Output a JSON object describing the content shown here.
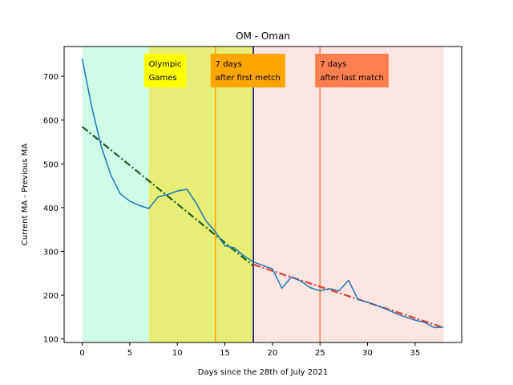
{
  "chart_data": {
    "type": "line",
    "title": "OM - Oman",
    "xlabel": "Days since the 28th of July 2021",
    "ylabel": "Current MA - Previous MA",
    "xlim": [
      -1.9,
      39.9
    ],
    "ylim": [
      92,
      768
    ],
    "xticks": [
      0,
      5,
      10,
      15,
      20,
      25,
      30,
      35
    ],
    "yticks": [
      100,
      200,
      300,
      400,
      500,
      600,
      700
    ],
    "grid": false,
    "regions": [
      {
        "x0": 0,
        "x1": 7,
        "color": "#d1fbe9"
      },
      {
        "x0": 7,
        "x1": 18,
        "color": "#e7ee77"
      },
      {
        "x0": 18,
        "x1": 38,
        "color": "#fde5e4"
      }
    ],
    "vlines": [
      {
        "x": 14,
        "color": "#ffa500"
      },
      {
        "x": 18,
        "color": "#00008b"
      },
      {
        "x": 25,
        "color": "#ff7f50"
      }
    ],
    "annotations": [
      {
        "x": 7,
        "y": 740,
        "lines": [
          "Olympic",
          "Games"
        ],
        "bg": "#ffff00"
      },
      {
        "x": 14,
        "y": 740,
        "lines": [
          "7 days",
          "after first metch"
        ],
        "bg": "#ffa500"
      },
      {
        "x": 25,
        "y": 740,
        "lines": [
          "7 days",
          "after last match"
        ],
        "bg": "#ff7f50"
      }
    ],
    "series": [
      {
        "color": "#1f77b4",
        "x": [
          0,
          1,
          2,
          3,
          4,
          5,
          6,
          7,
          8,
          9,
          10,
          11,
          12,
          13,
          14,
          15,
          16,
          17,
          18,
          19,
          20,
          21,
          22,
          23,
          24,
          25,
          26,
          27,
          28,
          29,
          30,
          31,
          32,
          33,
          34,
          35,
          36,
          37,
          38
        ],
        "y": [
          740,
          630,
          540,
          475,
          432,
          415,
          405,
          398,
          425,
          430,
          438,
          442,
          410,
          370,
          345,
          313,
          308,
          290,
          276,
          268,
          260,
          216,
          242,
          232,
          217,
          210,
          215,
          210,
          234,
          190,
          184,
          176,
          168,
          158,
          150,
          143,
          138,
          126,
          127
        ]
      }
    ],
    "trend_lines": [
      {
        "x": [
          0,
          18
        ],
        "y": [
          585,
          267
        ],
        "color": "#1a5e20",
        "style": "dashdot"
      },
      {
        "x": [
          18,
          38
        ],
        "y": [
          270,
          126
        ],
        "color": "#e0402a",
        "style": "dashdot"
      }
    ]
  }
}
